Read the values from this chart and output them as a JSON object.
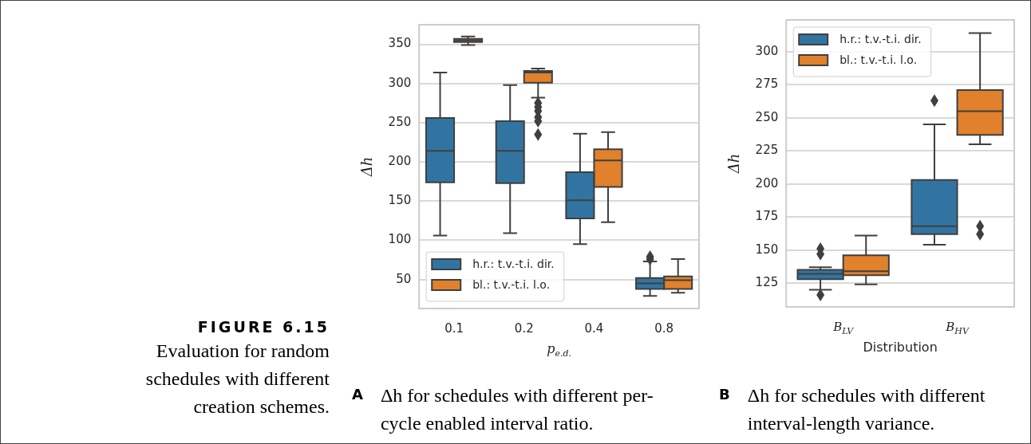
{
  "chart_data": [
    {
      "type": "box",
      "title": "Δh for schedules with different per-cycle enabled interval ratio.",
      "xlabel": "p$_{e.d.}$",
      "ylabel": "Δh",
      "categories": [
        "0.1",
        "0.2",
        "0.4",
        "0.8"
      ],
      "ylim": [
        13,
        375
      ],
      "yticks": [
        50,
        100,
        150,
        200,
        250,
        300,
        350
      ],
      "grid": "y",
      "legend": "bottom left",
      "annotations": [
        "FIGURE 6.15",
        "Evaluation for random schedules with different creation schemes.",
        "A"
      ],
      "series": [
        {
          "name": "h.r.: t.v.-t.i. dir.",
          "color": "#3274a1",
          "boxes": [
            {
              "low": 106,
              "q1": 174,
              "median": 214,
              "q3": 256,
              "high": 314
            },
            {
              "low": 109,
              "q1": 173,
              "median": 214,
              "q3": 252,
              "high": 298
            },
            {
              "low": 95,
              "q1": 128,
              "median": 151,
              "q3": 187,
              "high": 236
            },
            {
              "low": 29,
              "q1": 38,
              "median": 45,
              "q3": 52,
              "high": 73,
              "outliers": [
                76,
                79
              ]
            }
          ]
        },
        {
          "name": "bl.: t.v.-t.i. l.o.",
          "color": "#e1812c",
          "boxes": [
            {
              "low": 349,
              "q1": 353,
              "median": 355,
              "q3": 357,
              "high": 360
            },
            {
              "low": 282,
              "q1": 301,
              "median": 314,
              "q3": 316,
              "high": 319,
              "outliers": [
                275,
                270,
                265,
                257,
                252,
                235
              ]
            },
            {
              "low": 123,
              "q1": 168,
              "median": 202,
              "q3": 216,
              "high": 238
            },
            {
              "low": 33,
              "q1": 38,
              "median": 49,
              "q3": 54,
              "high": 76
            }
          ]
        }
      ]
    },
    {
      "type": "box",
      "title": "Δh for schedules with different interval-length variance.",
      "xlabel": "Distribution",
      "ylabel": "Δh",
      "categories": [
        "B$_{LV}$",
        "B$_{HV}$"
      ],
      "ylim": [
        107,
        324
      ],
      "yticks": [
        125,
        150,
        175,
        200,
        225,
        250,
        275,
        300
      ],
      "grid": "y",
      "legend": "top left",
      "annotations": [
        "B"
      ],
      "series": [
        {
          "name": "h.r.: t.v.-t.i. dir.",
          "color": "#3274a1",
          "boxes": [
            {
              "low": 120,
              "q1": 128,
              "median": 132,
              "q3": 135,
              "high": 137,
              "outliers": [
                151,
                147,
                116
              ]
            },
            {
              "low": 154,
              "q1": 162,
              "median": 168,
              "q3": 203,
              "high": 245,
              "outliers": [
                263
              ]
            }
          ]
        },
        {
          "name": "bl.: t.v.-t.i. l.o.",
          "color": "#e1812c",
          "boxes": [
            {
              "low": 124,
              "q1": 131,
              "median": 134,
              "q3": 146,
              "high": 161
            },
            {
              "low": 230,
              "q1": 237,
              "median": 255,
              "q3": 271,
              "high": 314,
              "outliers": [
                168,
                162
              ]
            }
          ]
        }
      ]
    }
  ]
}
